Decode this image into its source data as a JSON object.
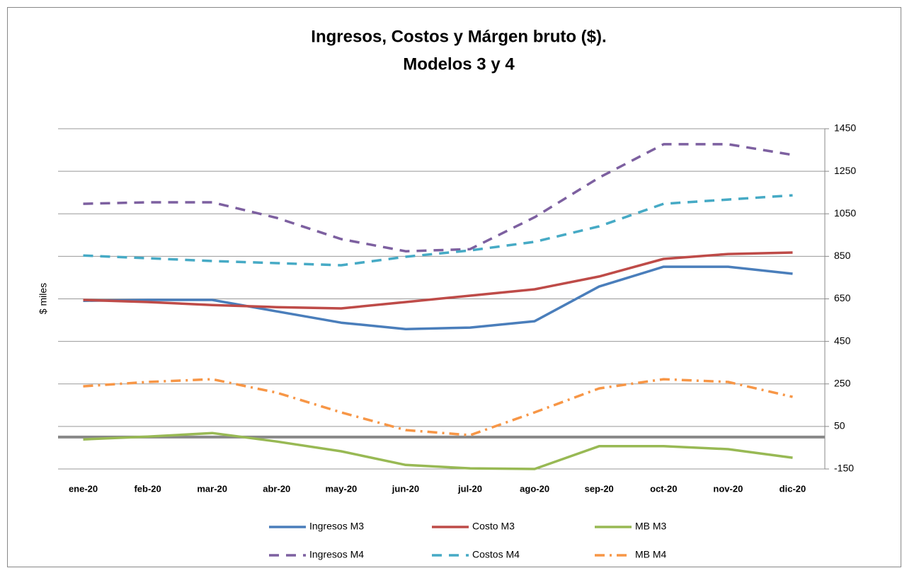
{
  "chart_data": {
    "type": "line",
    "title": [
      "Ingresos, Costos y Márgen bruto ($).",
      "Modelos 3 y 4"
    ],
    "y_label": "$ miles",
    "categories": [
      "ene-20",
      "feb-20",
      "mar-20",
      "abr-20",
      "may-20",
      "jun-20",
      "jul-20",
      "ago-20",
      "sep-20",
      "oct-20",
      "nov-20",
      "dic-20"
    ],
    "series": [
      {
        "name": "Ingresos M3",
        "color": "#4a7ebb",
        "dash": "solid",
        "values": [
          641,
          645,
          645,
          591,
          538,
          508,
          515,
          545,
          708,
          801,
          801,
          768
        ]
      },
      {
        "name": "Costo M3",
        "color": "#be4b48",
        "dash": "solid",
        "values": [
          645,
          635,
          621,
          611,
          605,
          635,
          665,
          695,
          755,
          838,
          861,
          868
        ]
      },
      {
        "name": "MB M3",
        "color": "#98b954",
        "dash": "solid",
        "values": [
          -11,
          2,
          19,
          -21,
          -67,
          -131,
          -147,
          -150,
          -43,
          -43,
          -57,
          -97
        ]
      },
      {
        "name": "Ingresos M4",
        "color": "#7d60a0",
        "dash": "dash",
        "values": [
          1097,
          1104,
          1104,
          1031,
          931,
          874,
          884,
          1034,
          1220,
          1377,
          1377,
          1327
        ]
      },
      {
        "name": "Costos M4",
        "color": "#46aac5",
        "dash": "dash",
        "values": [
          854,
          841,
          828,
          818,
          808,
          848,
          878,
          918,
          991,
          1097,
          1117,
          1137
        ]
      },
      {
        "name": "MB M4",
        "color": "#f79646",
        "dash": "dash-dot",
        "values": [
          239,
          259,
          272,
          209,
          116,
          33,
          9,
          116,
          229,
          272,
          259,
          189
        ]
      }
    ],
    "ylim": [
      -150,
      1450
    ],
    "yticks": [
      -150,
      50,
      250,
      450,
      650,
      850,
      1050,
      1250,
      1450
    ],
    "y_axis_side": "right",
    "grid": true,
    "legend": "bottom"
  }
}
